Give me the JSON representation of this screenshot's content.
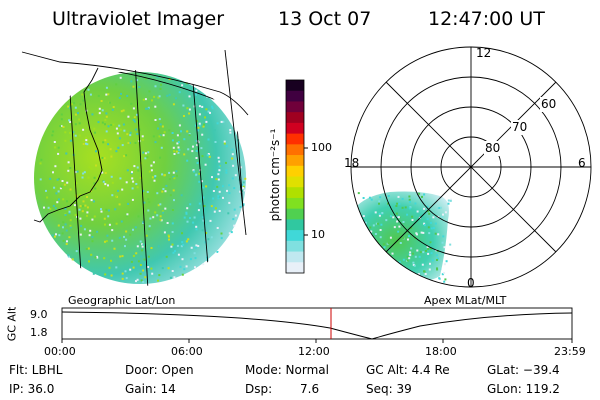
{
  "header": {
    "instrument": "Ultraviolet Imager",
    "date": "13 Oct 07",
    "time": "12:47:00 UT"
  },
  "colorbar": {
    "unit_label": "photon cm⁻²s⁻¹",
    "ticks": [
      "100",
      "10"
    ],
    "colors": [
      "#180020",
      "#400040",
      "#70003a",
      "#a00020",
      "#d00020",
      "#ff3000",
      "#ff7000",
      "#ffa000",
      "#ffd000",
      "#e0e000",
      "#b0e000",
      "#80e020",
      "#50d050",
      "#30c8a0",
      "#40d8d8",
      "#80e0e0",
      "#c0e8f0",
      "#e8f0f8"
    ]
  },
  "geo_panel": {
    "label": "Geographic Lat/Lon"
  },
  "polar_panel": {
    "label": "Apex MLat/MLT",
    "mlt_labels": {
      "top": "12",
      "left": "18",
      "right": "6",
      "bottom": "0"
    },
    "lat_labels": [
      "60",
      "70",
      "80"
    ]
  },
  "altitude_strip": {
    "axis_label": "GC Alt",
    "y_ticks": [
      "9.0",
      "1.8"
    ],
    "x_ticks": [
      "00:00",
      "06:00",
      "12:00",
      "18:00",
      "23:59"
    ],
    "current_time_marker_color": "#cc0000"
  },
  "footer": {
    "flt": "Flt: LBHL",
    "ip": "IP: 36.0",
    "door": "Door: Open",
    "gain": "Gain: 14",
    "mode": "Mode: Normal",
    "dsp_label": "Dsp:",
    "dsp_value": "7.6",
    "gc_alt": "GC Alt: 4.4 Re",
    "seq": "Seq: 39",
    "glat": "GLat: −39.4",
    "glon": "GLon: 119.2"
  }
}
